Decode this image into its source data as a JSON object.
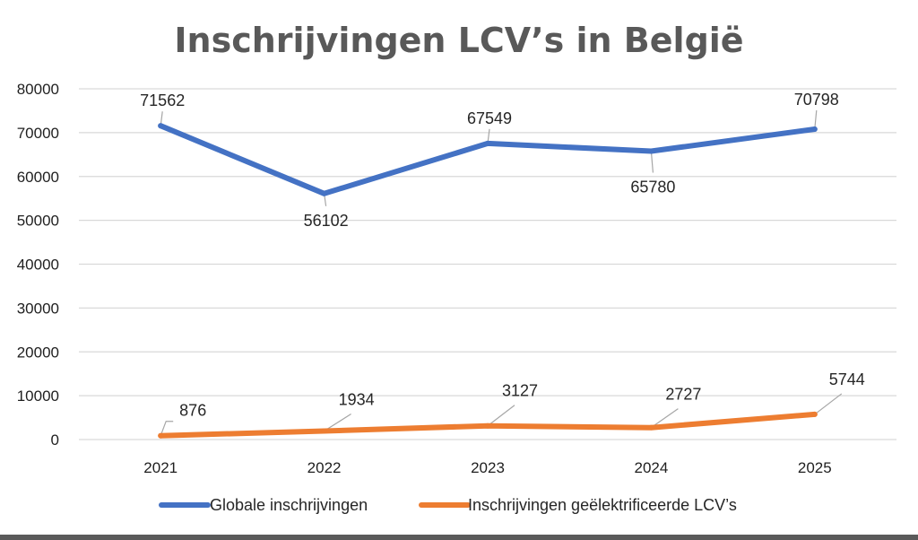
{
  "chart_data": {
    "type": "line",
    "title": "Inschrijvingen LCV’s in België",
    "categories": [
      "2021",
      "2022",
      "2023",
      "2024",
      "2025"
    ],
    "series": [
      {
        "name": "Globale inschrijvingen",
        "values": [
          71562,
          56102,
          67549,
          65780,
          70798
        ],
        "color": "#4472c4"
      },
      {
        "name": "Inschrijvingen geëlektrificeerde LCV’s",
        "values": [
          876,
          1934,
          3127,
          2727,
          5744
        ],
        "color": "#ed7d31"
      }
    ],
    "y_ticks": [
      "0",
      "10000",
      "20000",
      "30000",
      "40000",
      "50000",
      "60000",
      "70000",
      "80000"
    ],
    "ylim": [
      0,
      80000
    ],
    "grid": true,
    "legend_position": "bottom",
    "xlabel": "",
    "ylabel": ""
  }
}
